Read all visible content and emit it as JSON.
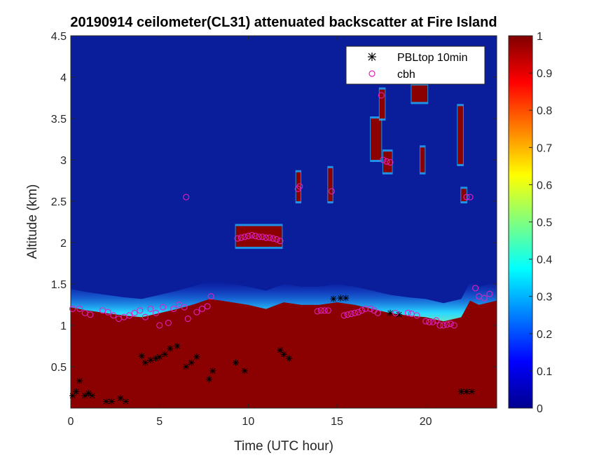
{
  "chart_data": {
    "type": "heatmap",
    "title": "20190914 ceilometer(CL31) attenuated backscatter at Fire Island",
    "xlabel": "Time (UTC hour)",
    "ylabel": "Altitude (km)",
    "xlim": [
      0,
      24
    ],
    "ylim": [
      0,
      4.5
    ],
    "xticks": [
      0,
      5,
      10,
      15,
      20
    ],
    "yticks": [
      0.5,
      1,
      1.5,
      2,
      2.5,
      3,
      3.5,
      4,
      4.5
    ],
    "colorbar": {
      "range": [
        0,
        1
      ],
      "ticks": [
        0,
        0.1,
        0.2,
        0.3,
        0.4,
        0.5,
        0.6,
        0.7,
        0.8,
        0.9,
        1
      ]
    },
    "colors": {
      "background": "#0a1d9a",
      "saturated": "#8b0000"
    },
    "legend": {
      "position": "top-right",
      "entries": [
        {
          "label": "PBLtop 10min",
          "marker": "*",
          "color": "#000000"
        },
        {
          "label": "cbh",
          "marker": "o",
          "color": "#e020c0"
        }
      ]
    },
    "boundary_layer_top": {
      "x": [
        0,
        1,
        2,
        3,
        4,
        5,
        6,
        7,
        7.8,
        8.5,
        10,
        11,
        12,
        13,
        14,
        15,
        16,
        17,
        18,
        19,
        20,
        21,
        22,
        22.5,
        23,
        24
      ],
      "y": [
        1.32,
        1.28,
        1.25,
        1.22,
        1.2,
        1.25,
        1.3,
        1.36,
        1.42,
        1.4,
        1.35,
        1.3,
        1.38,
        1.35,
        1.35,
        1.38,
        1.35,
        1.3,
        1.25,
        1.22,
        1.2,
        1.15,
        1.2,
        1.4,
        1.35,
        1.4
      ]
    },
    "clouds": [
      {
        "x0": 9.3,
        "x1": 11.9,
        "y0": 1.95,
        "y1": 2.2
      },
      {
        "x0": 12.7,
        "x1": 12.95,
        "y0": 2.5,
        "y1": 2.85
      },
      {
        "x0": 14.5,
        "x1": 14.75,
        "y0": 2.5,
        "y1": 2.9
      },
      {
        "x0": 16.9,
        "x1": 17.5,
        "y0": 3.0,
        "y1": 3.5
      },
      {
        "x0": 17.4,
        "x1": 17.7,
        "y0": 3.5,
        "y1": 3.85
      },
      {
        "x0": 17.6,
        "x1": 18.1,
        "y0": 2.85,
        "y1": 3.1
      },
      {
        "x0": 19.2,
        "x1": 20.1,
        "y0": 3.7,
        "y1": 3.9
      },
      {
        "x0": 19.7,
        "x1": 19.95,
        "y0": 2.85,
        "y1": 3.15
      },
      {
        "x0": 21.8,
        "x1": 22.1,
        "y0": 2.95,
        "y1": 3.65
      },
      {
        "x0": 22.0,
        "x1": 22.3,
        "y0": 2.5,
        "y1": 2.65
      }
    ],
    "series": [
      {
        "name": "PBLtop 10min",
        "x": [
          0.1,
          0.3,
          0.5,
          0.8,
          1.0,
          1.2,
          2.0,
          2.3,
          2.8,
          3.1,
          4.0,
          4.2,
          4.5,
          4.8,
          5.0,
          5.3,
          5.6,
          6.0,
          6.5,
          6.8,
          7.1,
          7.8,
          8.0,
          9.3,
          9.8,
          11.8,
          12.0,
          12.3,
          14.8,
          15.2,
          15.5,
          18.0,
          18.5,
          22.0,
          22.3,
          22.6
        ],
        "y": [
          0.15,
          0.2,
          0.33,
          0.15,
          0.18,
          0.15,
          0.08,
          0.08,
          0.12,
          0.08,
          0.63,
          0.55,
          0.58,
          0.6,
          0.62,
          0.65,
          0.72,
          0.75,
          0.5,
          0.55,
          0.62,
          0.35,
          0.45,
          0.55,
          0.45,
          0.7,
          0.65,
          0.6,
          1.32,
          1.33,
          1.33,
          1.15,
          1.13,
          0.2,
          0.2,
          0.2
        ]
      },
      {
        "name": "cbh",
        "x": [
          0.1,
          0.5,
          0.8,
          1.1,
          1.8,
          2.1,
          2.4,
          2.7,
          3.0,
          3.3,
          3.6,
          3.9,
          4.2,
          4.5,
          4.8,
          5.0,
          5.2,
          5.5,
          5.8,
          6.1,
          6.4,
          6.6,
          7.1,
          7.4,
          7.7,
          7.9,
          9.4,
          9.6,
          9.8,
          10.0,
          10.2,
          10.4,
          10.6,
          10.8,
          11.0,
          11.2,
          11.4,
          11.6,
          11.8,
          12.8,
          12.9,
          13.9,
          14.1,
          14.3,
          14.5,
          14.7,
          15.4,
          15.6,
          15.8,
          16.0,
          16.2,
          16.4,
          16.6,
          16.9,
          17.1,
          17.3,
          17.6,
          17.5,
          17.8,
          18.0,
          18.3,
          19.0,
          19.2,
          19.5,
          20.0,
          20.2,
          20.4,
          20.6,
          20.8,
          21.0,
          21.2,
          21.4,
          21.6,
          22.3,
          22.5,
          22.8,
          23.0,
          23.3,
          23.6,
          6.5
        ],
        "y": [
          1.2,
          1.2,
          1.15,
          1.13,
          1.18,
          1.16,
          1.12,
          1.08,
          1.1,
          1.12,
          1.15,
          1.18,
          1.1,
          1.2,
          1.15,
          1.0,
          1.22,
          1.03,
          1.2,
          1.25,
          1.22,
          1.08,
          1.16,
          1.2,
          1.23,
          1.35,
          2.05,
          2.06,
          2.07,
          2.08,
          2.09,
          2.08,
          2.07,
          2.07,
          2.06,
          2.06,
          2.05,
          2.04,
          2.02,
          2.65,
          2.68,
          1.17,
          1.18,
          1.18,
          1.18,
          2.62,
          1.12,
          1.13,
          1.14,
          1.15,
          1.16,
          1.18,
          1.2,
          1.2,
          1.18,
          1.15,
          3.0,
          3.78,
          2.98,
          2.97,
          1.15,
          1.15,
          1.14,
          1.12,
          1.05,
          1.04,
          1.04,
          1.06,
          1.0,
          1.0,
          1.01,
          1.02,
          1.0,
          2.55,
          2.55,
          1.45,
          1.35,
          1.33,
          1.38,
          2.55
        ]
      }
    ]
  }
}
